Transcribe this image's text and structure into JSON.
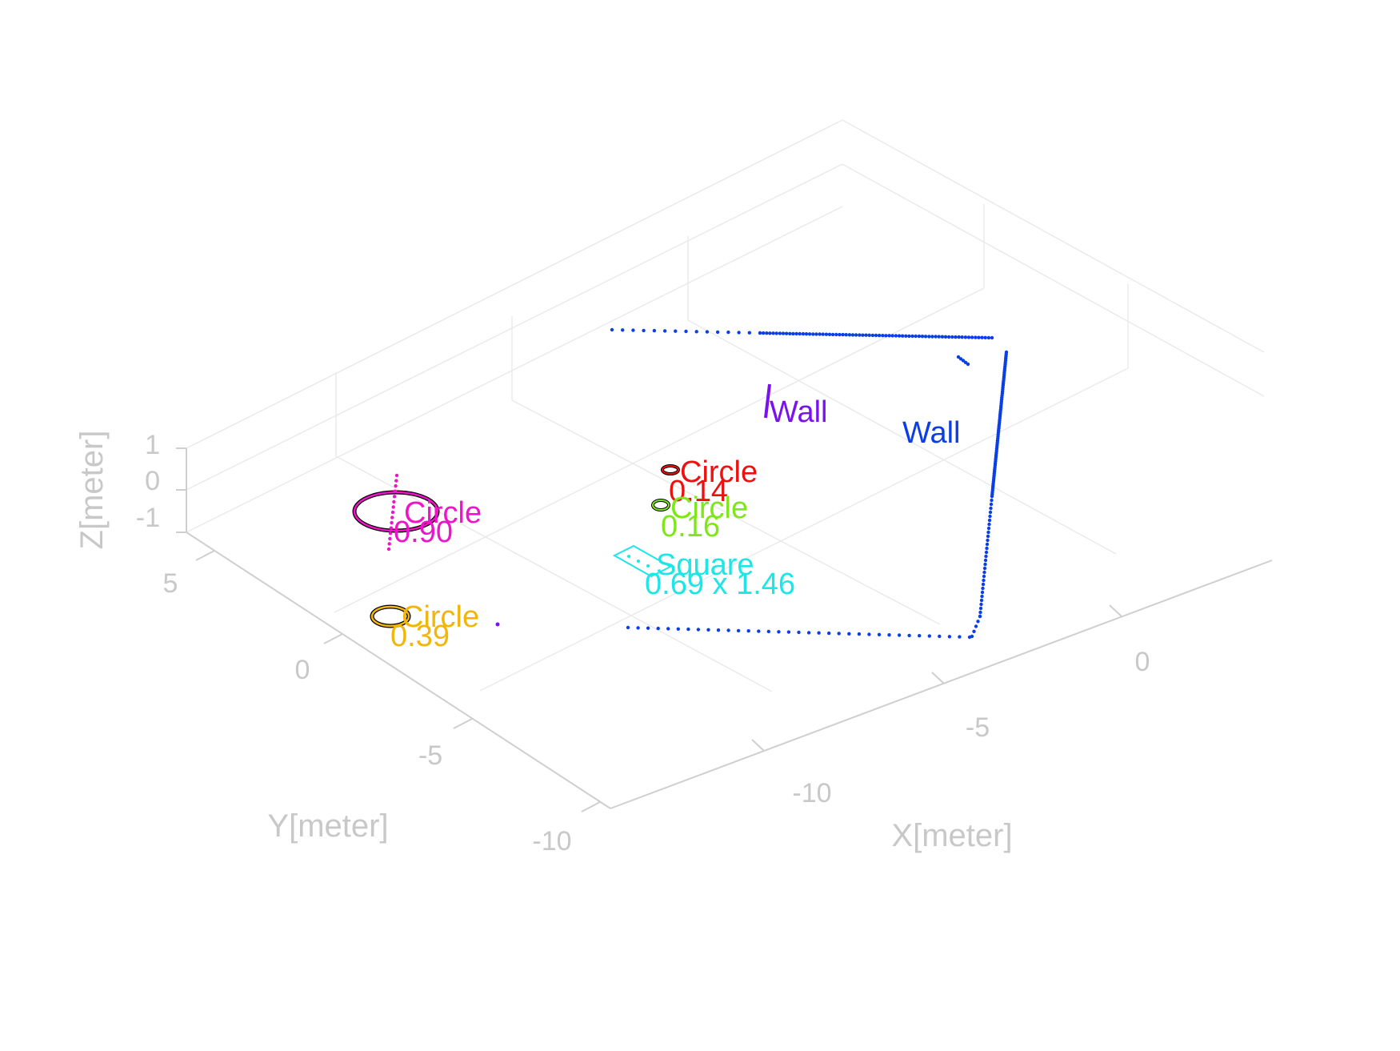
{
  "chart_data": {
    "type": "scatter3d",
    "xlabel": "X[meter]",
    "ylabel": "Y[meter]",
    "zlabel": "Z[meter]",
    "x_ticks": [
      "-10",
      "-5",
      "0"
    ],
    "y_ticks": [
      "-10",
      "-5",
      "0",
      "5"
    ],
    "z_ticks": [
      "-1",
      "0",
      "1"
    ],
    "grid": true,
    "objects": [
      {
        "kind": "Wall",
        "label": "Wall",
        "size": "",
        "color": "#0b3fe6"
      },
      {
        "kind": "Wall",
        "label": "Wall",
        "size": "",
        "color": "#7a12f0"
      },
      {
        "kind": "Circle",
        "label": "Circle",
        "size": "0.14",
        "color": "#ee0f0f"
      },
      {
        "kind": "Circle",
        "label": "Circle",
        "size": "0.16",
        "color": "#7ee61a"
      },
      {
        "kind": "Square",
        "label": "Square",
        "size": "0.69 x 1.46",
        "color": "#1ee6e6"
      },
      {
        "kind": "Circle",
        "label": "Circle",
        "size": "0.90",
        "color": "#ee14c8"
      },
      {
        "kind": "Circle",
        "label": "Circle",
        "size": "0.39",
        "color": "#f2b50a"
      }
    ]
  }
}
